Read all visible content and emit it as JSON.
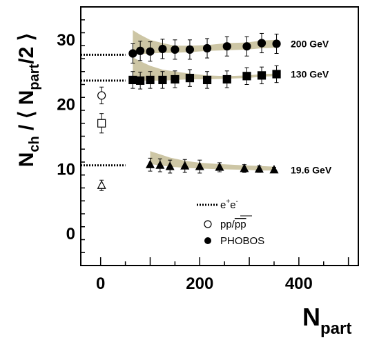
{
  "chart_data": {
    "type": "scatter",
    "xlabel": {
      "main": "N",
      "sub": "part"
    },
    "ylabel": {
      "main": "N",
      "sub": "ch",
      "mid": " / ⟨ N",
      "sub2": "part",
      "end": "/2 ⟩"
    },
    "xlim": [
      -40,
      520
    ],
    "ylim": [
      -5,
      35
    ],
    "xticks": [
      0,
      200,
      400
    ],
    "xtick_labels": [
      "0",
      "200",
      "400"
    ],
    "yticks": [
      0,
      10,
      20,
      30
    ],
    "ytick_labels": [
      "0",
      "10",
      "20",
      "30"
    ],
    "grid": false,
    "legend_position": "bottom-right",
    "colors": {
      "band": "#cdc6a5",
      "marker": "#000000"
    },
    "series": [
      {
        "name": "200 GeV",
        "label": "200 GeV",
        "marker": "circle",
        "ee_level": 27.6,
        "x": [
          65,
          80,
          100,
          125,
          150,
          180,
          215,
          255,
          295,
          325,
          355
        ],
        "y": [
          27.8,
          28.2,
          28.1,
          28.5,
          28.4,
          28.4,
          28.6,
          28.9,
          28.9,
          29.4,
          29.3
        ],
        "yerr": [
          1.5,
          1.5,
          1.5,
          1.5,
          1.5,
          1.5,
          1.5,
          1.5,
          1.5,
          1.5,
          1.5
        ],
        "band_upper": [
          31.4,
          30.7,
          29.9,
          29.4,
          29.0,
          29.0,
          29.1,
          29.4,
          29.5,
          29.8,
          29.9
        ],
        "band_lower": [
          27.7,
          27.7,
          27.8,
          27.9,
          27.9,
          28.0,
          28.2,
          28.3,
          28.4,
          28.6,
          28.7
        ]
      },
      {
        "name": "130 GeV",
        "label": "130 GeV",
        "marker": "square",
        "ee_level": 23.6,
        "x": [
          65,
          80,
          100,
          125,
          150,
          180,
          215,
          255,
          295,
          325,
          355
        ],
        "y": [
          23.7,
          23.6,
          23.7,
          23.7,
          23.8,
          24.0,
          23.7,
          23.8,
          24.3,
          24.4,
          24.6
        ],
        "yerr": [
          1.3,
          1.3,
          1.3,
          1.3,
          1.3,
          1.3,
          1.3,
          1.3,
          1.3,
          1.3,
          1.3
        ],
        "band_upper": [
          27.2,
          26.6,
          25.9,
          25.3,
          25.0,
          24.7,
          24.4,
          24.3,
          24.4,
          24.6,
          24.7
        ],
        "band_lower": [
          23.6,
          23.6,
          23.6,
          23.6,
          23.7,
          23.8,
          23.8,
          23.9,
          24.0,
          24.2,
          24.3
        ]
      },
      {
        "name": "19.6 GeV",
        "label": "19.6 GeV",
        "marker": "triangle",
        "ee_level": 10.5,
        "x": [
          100,
          120,
          140,
          170,
          200,
          240,
          290,
          320,
          350
        ],
        "y": [
          10.6,
          10.5,
          10.3,
          10.4,
          10.3,
          10.2,
          10.0,
          9.9,
          9.8
        ],
        "yerr": [
          1.0,
          1.0,
          1.0,
          1.0,
          1.0,
          0.7,
          0.6,
          0.5,
          0.4
        ],
        "band_upper": [
          12.7,
          12.2,
          11.7,
          11.2,
          10.9,
          10.7,
          10.5,
          10.4,
          10.3
        ],
        "band_lower": [
          10.7,
          10.5,
          10.3,
          10.1,
          10.0,
          9.9,
          9.8,
          9.7,
          9.7
        ]
      }
    ],
    "reference_points": [
      {
        "name": "pp/p̄p",
        "marker": "open-circle",
        "x": 2,
        "y": 21.3,
        "yerr": 1.3
      },
      {
        "name": "pp/p̄p",
        "marker": "open-square",
        "x": 2,
        "y": 17.0,
        "yerr": 1.5
      },
      {
        "name": "pp/p̄p",
        "marker": "open-triangle",
        "x": 2,
        "y": 7.4,
        "yerr": 0.8
      }
    ],
    "legend": [
      {
        "label": "e",
        "sup1": "+",
        "mid": "e",
        "sup2": "-",
        "style": "dotted-line"
      },
      {
        "label": "pp/",
        "overline": "pp",
        "style": "open-circle"
      },
      {
        "label": "PHOBOS",
        "style": "filled-circle"
      }
    ]
  }
}
